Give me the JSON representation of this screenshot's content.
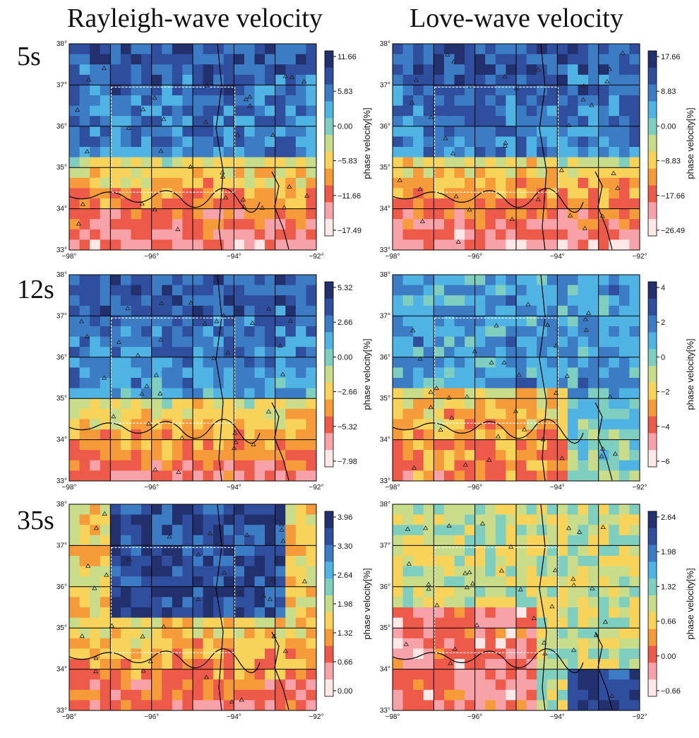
{
  "column_titles": [
    "Rayleigh-wave velocity",
    "Love-wave velocity"
  ],
  "row_labels": [
    "5s",
    "12s",
    "35s"
  ],
  "colors": {
    "map_scale": [
      "#fde8e8",
      "#f7a2a8",
      "#ee5a4a",
      "#f59b3a",
      "#f7d35a",
      "#c9dc8a",
      "#7fcfc0",
      "#4fb3e3",
      "#3c7cc4",
      "#2f4e9e",
      "#23306e"
    ],
    "grid_lines": "#000000",
    "study_box": "#ffffff"
  },
  "map_axes": {
    "lat_ticks": [
      "33°",
      "34°",
      "35°",
      "36°",
      "37°",
      "38°"
    ],
    "lon_ticks": [
      "−98°",
      "−96°",
      "−94°",
      "−92°"
    ]
  },
  "colorbar_label": "phase velocity[%]",
  "panels": [
    {
      "id": "rayleigh-5s",
      "colorbar_ticks": [
        "11.66",
        "5.83",
        "0.00",
        "−5.83",
        "−11.66",
        "−17.49"
      ],
      "pattern": "north-fast"
    },
    {
      "id": "love-5s",
      "colorbar_ticks": [
        "17.66",
        "8.83",
        "0.00",
        "−8.83",
        "−17.66",
        "−26.49"
      ],
      "pattern": "north-fast"
    },
    {
      "id": "rayleigh-12s",
      "colorbar_ticks": [
        "5.32",
        "2.66",
        "0.00",
        "−2.66",
        "−5.32",
        "−7.98"
      ],
      "pattern": "north-fast-mid"
    },
    {
      "id": "love-12s",
      "colorbar_ticks": [
        "4",
        "2",
        "0",
        "−2",
        "−4",
        "−6"
      ],
      "pattern": "mixed"
    },
    {
      "id": "rayleigh-35s",
      "colorbar_ticks": [
        "3.96",
        "3.30",
        "2.64",
        "1.98",
        "1.32",
        "0.66",
        "0.00"
      ],
      "pattern": "center-fast"
    },
    {
      "id": "love-35s",
      "colorbar_ticks": [
        "2.64",
        "1.98",
        "1.32",
        "0.66",
        "0.00",
        "−0.66"
      ],
      "pattern": "southwest-slow"
    }
  ]
}
